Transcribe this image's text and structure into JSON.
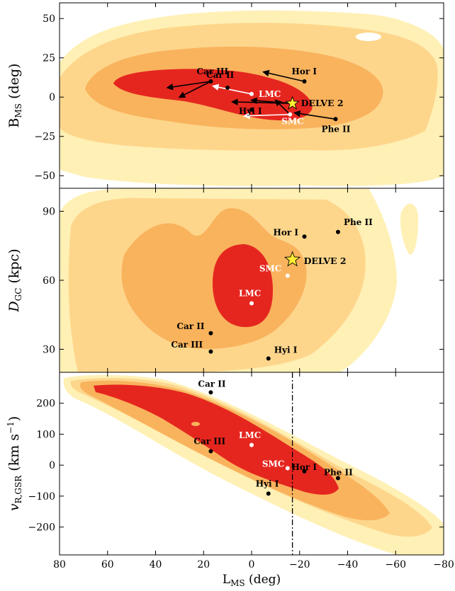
{
  "chart_data": {
    "type": "scatter",
    "xlabel": "L_MS (deg)",
    "x_ticks": [
      80,
      60,
      40,
      20,
      0,
      -20,
      -40,
      -60,
      -80
    ],
    "x_tick_labels": [
      "80",
      "60",
      "40",
      "20",
      "0",
      "−20",
      "−40",
      "−60",
      "−80"
    ],
    "xlim": [
      80,
      -80
    ],
    "colors": {
      "inner": "#e5261f",
      "mid": "#f9b35d",
      "outer1": "#fdd68c",
      "outer2": "#fff0b5",
      "star": "#ffee33"
    },
    "panels": [
      {
        "id": "bms",
        "ylabel": "B_MS (deg)",
        "ylim": [
          -58,
          60
        ],
        "y_ticks": [
          50,
          25,
          0,
          -25,
          -50
        ],
        "y_tick_labels": [
          "50",
          "25",
          "0",
          "−25",
          "−50"
        ],
        "points": [
          {
            "name": "Car III",
            "x": 17,
            "y": 10,
            "color": "black",
            "label_color": "black"
          },
          {
            "name": "Car II",
            "x": 10,
            "y": 6,
            "color": "black",
            "label_color": "black"
          },
          {
            "name": "Hor I",
            "x": -22,
            "y": 10,
            "color": "black",
            "label_color": "black"
          },
          {
            "name": "LMC",
            "x": 0,
            "y": 2,
            "color": "white",
            "label_color": "white"
          },
          {
            "name": "DELVE 2",
            "x": -17,
            "y": -4,
            "color": "star",
            "label_color": "black"
          },
          {
            "name": "Hyi I",
            "x": 0,
            "y": -8,
            "color": "black",
            "label_color": "black"
          },
          {
            "name": "SMC",
            "x": -16,
            "y": -11,
            "color": "white",
            "label_color": "white"
          },
          {
            "name": "Phe II",
            "x": -35,
            "y": -14,
            "color": "black",
            "label_color": "black"
          }
        ]
      },
      {
        "id": "dgc",
        "ylabel": "D_GC (kpc)",
        "ylim": [
          20,
          100
        ],
        "y_ticks": [
          90,
          60,
          30
        ],
        "y_tick_labels": [
          "90",
          "60",
          "30"
        ],
        "points": [
          {
            "name": "Phe II",
            "x": -36,
            "y": 81,
            "color": "black",
            "label_color": "black"
          },
          {
            "name": "Hor I",
            "x": -22,
            "y": 79,
            "color": "black",
            "label_color": "black"
          },
          {
            "name": "DELVE 2",
            "x": -17,
            "y": 69,
            "color": "star",
            "label_color": "black"
          },
          {
            "name": "SMC",
            "x": -15,
            "y": 62,
            "color": "white",
            "label_color": "white"
          },
          {
            "name": "LMC",
            "x": 0,
            "y": 50,
            "color": "white",
            "label_color": "white"
          },
          {
            "name": "Car II",
            "x": 17,
            "y": 37,
            "color": "black",
            "label_color": "black"
          },
          {
            "name": "Car III",
            "x": 17,
            "y": 29,
            "color": "black",
            "label_color": "black"
          },
          {
            "name": "Hyi I",
            "x": -7,
            "y": 26,
            "color": "black",
            "label_color": "black"
          }
        ]
      },
      {
        "id": "vgsr",
        "ylabel": "v_R,GSR (km s^-1)",
        "ylim": [
          -290,
          300
        ],
        "y_ticks": [
          200,
          100,
          0,
          -100,
          -200
        ],
        "y_tick_labels": [
          "200",
          "100",
          "0",
          "−100",
          "−200"
        ],
        "points": [
          {
            "name": "Car II",
            "x": 17,
            "y": 235,
            "color": "black",
            "label_color": "black"
          },
          {
            "name": "LMC",
            "x": 0,
            "y": 65,
            "color": "white",
            "label_color": "white"
          },
          {
            "name": "Car III",
            "x": 17,
            "y": 45,
            "color": "black",
            "label_color": "black"
          },
          {
            "name": "SMC",
            "x": -15,
            "y": -10,
            "color": "white",
            "label_color": "white"
          },
          {
            "name": "Hor I",
            "x": -22,
            "y": -20,
            "color": "black",
            "label_color": "black"
          },
          {
            "name": "Phe II",
            "x": -36,
            "y": -42,
            "color": "black",
            "label_color": "black"
          },
          {
            "name": "Hyi I",
            "x": -7,
            "y": -92,
            "color": "black",
            "label_color": "black"
          }
        ],
        "vline_x": -17
      }
    ]
  }
}
